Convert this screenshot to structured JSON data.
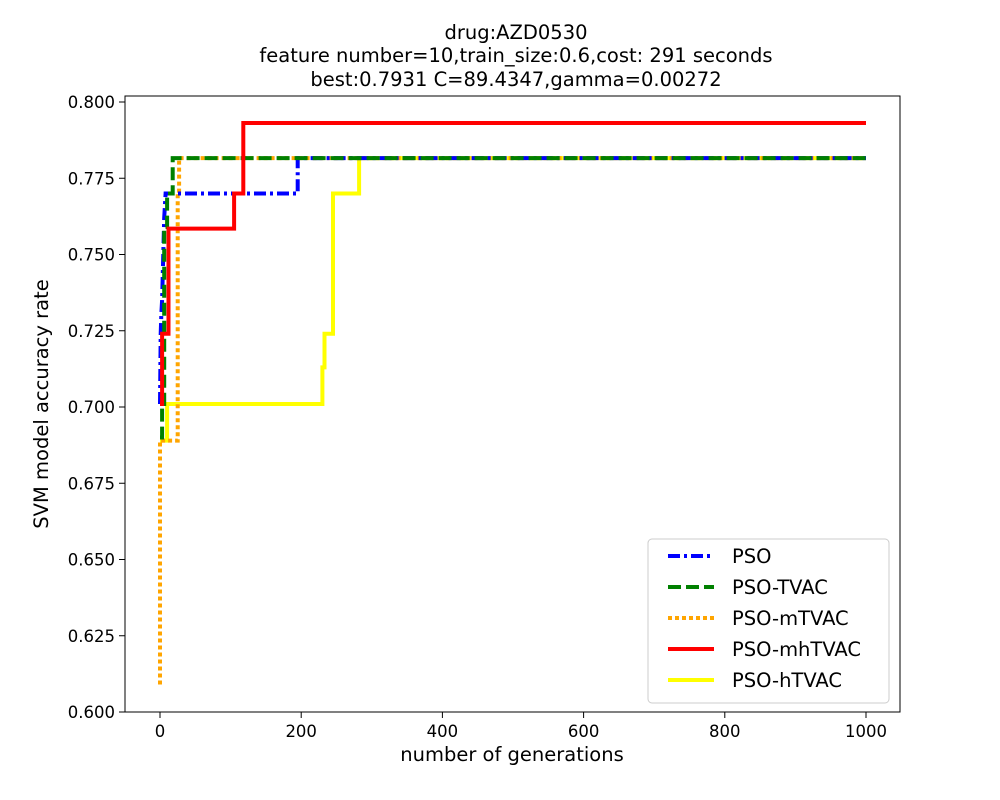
{
  "chart_data": {
    "type": "line",
    "title_lines": [
      "drug:AZD0530",
      "feature number=10,train_size:0.6,cost: 291 seconds",
      "best:0.7931  C=89.4347,gamma=0.00272"
    ],
    "xlabel": "number of generations",
    "ylabel": "SVM model accuracy rate",
    "xlim": [
      -50,
      1050
    ],
    "ylim": [
      0.6,
      0.802
    ],
    "xticks": [
      0,
      200,
      400,
      600,
      800,
      1000
    ],
    "yticks": [
      0.6,
      0.625,
      0.65,
      0.675,
      0.7,
      0.725,
      0.75,
      0.775,
      0.8
    ],
    "xtick_labels": [
      "0",
      "200",
      "400",
      "600",
      "800",
      "1000"
    ],
    "ytick_labels": [
      "0.600",
      "0.625",
      "0.650",
      "0.675",
      "0.700",
      "0.725",
      "0.750",
      "0.775",
      "0.800"
    ],
    "legend_position": "lower-right",
    "series": [
      {
        "name": "PSO",
        "color": "#0000ff",
        "style": "dashdot",
        "points": [
          [
            0,
            0.701
          ],
          [
            1,
            0.724
          ],
          [
            2,
            0.731
          ],
          [
            3,
            0.735
          ],
          [
            6,
            0.762
          ],
          [
            8,
            0.77
          ],
          [
            195,
            0.77
          ],
          [
            195,
            0.7816
          ],
          [
            1000,
            0.7816
          ]
        ]
      },
      {
        "name": "PSO-TVAC",
        "color": "#008000",
        "style": "dashed",
        "points": [
          [
            0,
            0.69
          ],
          [
            3,
            0.69
          ],
          [
            3,
            0.701
          ],
          [
            6,
            0.701
          ],
          [
            6,
            0.759
          ],
          [
            10,
            0.759
          ],
          [
            10,
            0.77
          ],
          [
            18,
            0.77
          ],
          [
            18,
            0.7816
          ],
          [
            1000,
            0.7816
          ]
        ]
      },
      {
        "name": "PSO-mTVAC",
        "color": "#ffa500",
        "style": "dotted",
        "points": [
          [
            0,
            0.609
          ],
          [
            0,
            0.689
          ],
          [
            25,
            0.689
          ],
          [
            25,
            0.77
          ],
          [
            27,
            0.77
          ],
          [
            27,
            0.7816
          ],
          [
            1000,
            0.7816
          ]
        ]
      },
      {
        "name": "PSO-mhTVAC",
        "color": "#ff0000",
        "style": "solid",
        "points": [
          [
            0,
            0.701
          ],
          [
            3,
            0.701
          ],
          [
            3,
            0.724
          ],
          [
            12,
            0.724
          ],
          [
            12,
            0.7585
          ],
          [
            105,
            0.7585
          ],
          [
            105,
            0.77
          ],
          [
            118,
            0.77
          ],
          [
            118,
            0.7931
          ],
          [
            1000,
            0.7931
          ]
        ]
      },
      {
        "name": "PSO-hTVAC",
        "color": "#ffff00",
        "style": "solid",
        "points": [
          [
            0,
            0.689
          ],
          [
            10,
            0.689
          ],
          [
            10,
            0.701
          ],
          [
            230,
            0.701
          ],
          [
            230,
            0.713
          ],
          [
            233,
            0.713
          ],
          [
            233,
            0.724
          ],
          [
            245,
            0.724
          ],
          [
            245,
            0.77
          ],
          [
            282,
            0.77
          ],
          [
            282,
            0.7816
          ],
          [
            1000,
            0.7816
          ]
        ]
      }
    ]
  }
}
